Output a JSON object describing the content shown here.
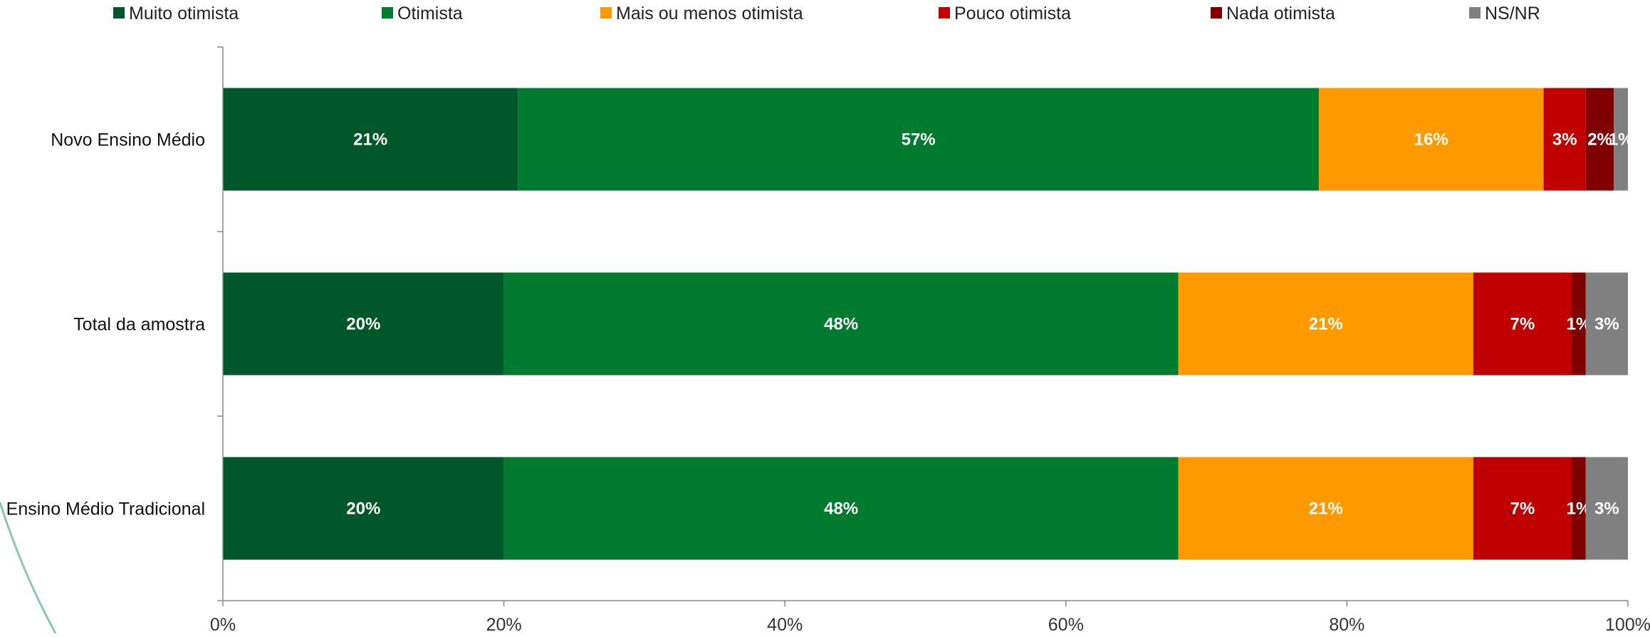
{
  "chart_data": {
    "type": "bar",
    "orientation": "horizontal",
    "stacked": true,
    "categories": [
      "Novo Ensino Médio",
      "Total da amostra",
      "Ensino Médio Tradicional"
    ],
    "series": [
      {
        "name": "Muito otimista",
        "color": "#00582a",
        "values": [
          21,
          20,
          20
        ],
        "labels": [
          "21%",
          "20%",
          "20%"
        ]
      },
      {
        "name": "Otimista",
        "color": "#007a2f",
        "values": [
          57,
          48,
          48
        ],
        "labels": [
          "57%",
          "48%",
          "48%"
        ]
      },
      {
        "name": "Mais ou menos otimista",
        "color": "#ff9900",
        "values": [
          16,
          21,
          21
        ],
        "labels": [
          "16%",
          "21%",
          "21%"
        ]
      },
      {
        "name": "Pouco otimista",
        "color": "#c00000",
        "values": [
          3,
          7,
          7
        ],
        "labels": [
          "3%",
          "7%",
          "7%"
        ]
      },
      {
        "name": "Nada otimista",
        "color": "#7f0000",
        "values": [
          2,
          1,
          1
        ],
        "labels": [
          "2%",
          "1%",
          "1%"
        ]
      },
      {
        "name": "NS/NR",
        "color": "#808080",
        "values": [
          1,
          3,
          3
        ],
        "labels": [
          "1%",
          "3%",
          "3%"
        ]
      }
    ],
    "xlim": [
      0,
      100
    ],
    "x_ticks": [
      "0%",
      "20%",
      "40%",
      "60%",
      "80%",
      "100%"
    ],
    "legend_position": "top",
    "grid": false
  }
}
